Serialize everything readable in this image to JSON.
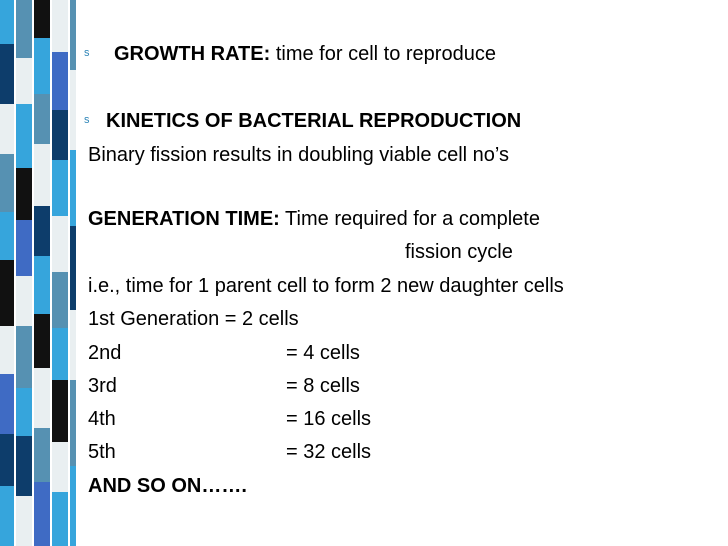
{
  "bullets": [
    {
      "symbol": "s",
      "bold": "GROWTH RATE:",
      "text": " time for cell to reproduce"
    },
    {
      "symbol": "s",
      "bold": "KINETICS OF BACTERIAL REPRODUCTION",
      "text": ""
    }
  ],
  "binary_fission": "Binary fission results in doubling viable cell no’s",
  "generation_time": {
    "label": "GENERATION TIME:",
    "text": " Time required for a complete",
    "continuation": "fission cycle"
  },
  "ie_line": "i.e., time for 1 parent cell to form 2 new daughter cells",
  "generations": [
    {
      "label": "1st Generation  = 2 cells",
      "value": ""
    },
    {
      "label": "2nd",
      "value": "= 4 cells"
    },
    {
      "label": "3rd",
      "value": "= 8 cells"
    },
    {
      "label": "4th",
      "value": "= 16 cells"
    },
    {
      "label": "5th",
      "value": "= 32 cells"
    }
  ],
  "closing": "AND SO ON…….",
  "colors": {
    "light_blue": "#36a5dc",
    "steel_blue": "#5691b2",
    "navy": "#0d3d6b",
    "black": "#111111",
    "pale": "#e9eff1",
    "royal": "#3f6bc4",
    "bullet": "#2f86b8"
  }
}
